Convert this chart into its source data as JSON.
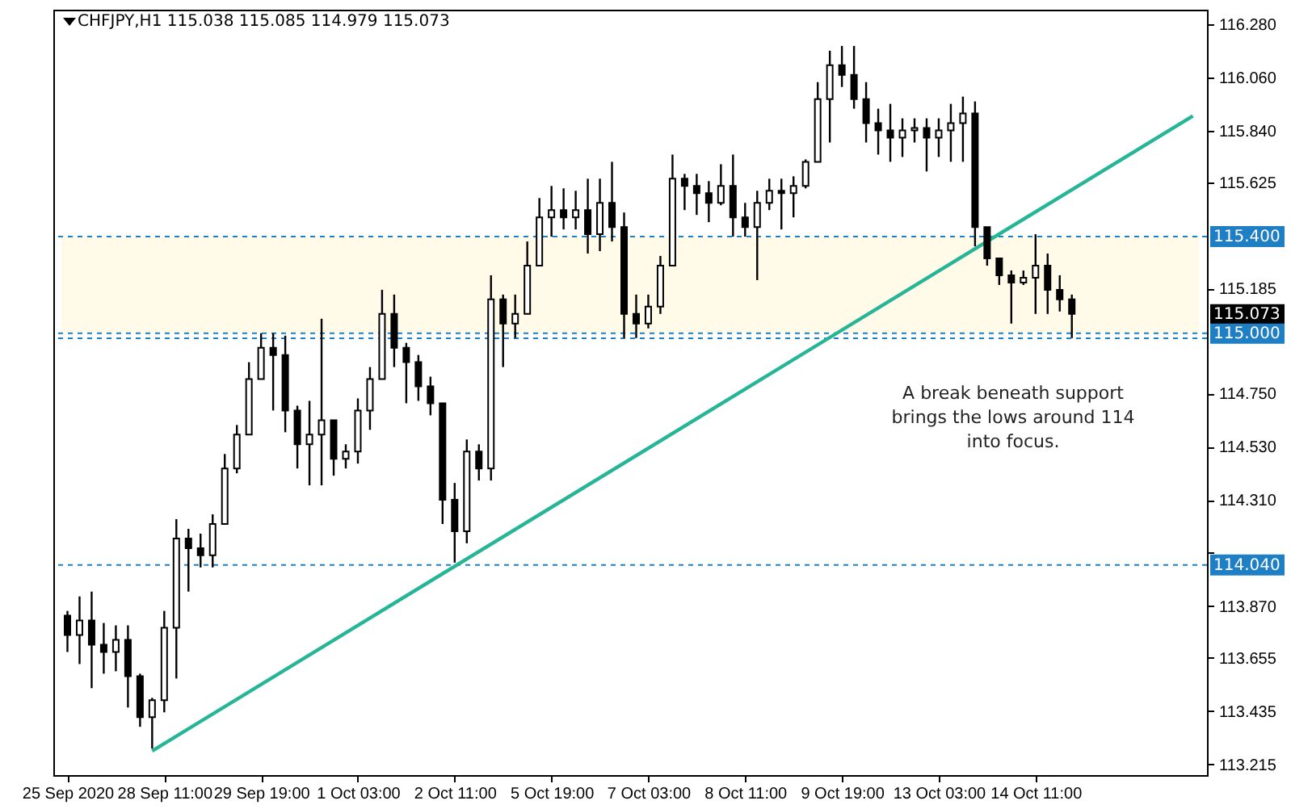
{
  "chart_data": {
    "type": "candlestick",
    "title": "CHFJPY,H1 115.038 115.085 114.979 115.073",
    "categories": [
      "25 Sep 2020",
      null,
      null,
      null,
      null,
      null,
      null,
      null,
      "28 Sep 11:00",
      null,
      null,
      null,
      null,
      null,
      null,
      null,
      "29 Sep 19:00",
      null,
      null,
      null,
      null,
      null,
      null,
      null,
      "1 Oct 03:00",
      null,
      null,
      null,
      null,
      null,
      null,
      null,
      "2 Oct 11:00",
      null,
      null,
      null,
      null,
      null,
      null,
      null,
      "5 Oct 19:00",
      null,
      null,
      null,
      null,
      null,
      null,
      null,
      "7 Oct 03:00",
      null,
      null,
      null,
      null,
      null,
      null,
      null,
      "8 Oct 11:00",
      null,
      null,
      null,
      null,
      null,
      null,
      null,
      "9 Oct 19:00",
      null,
      null,
      null,
      null,
      null,
      null,
      null,
      "13 Oct 03:00",
      null,
      null,
      null,
      null,
      null,
      null,
      null,
      "14 Oct 11:00",
      null,
      null,
      null,
      null,
      null,
      null,
      null,
      null,
      null,
      null,
      null,
      null,
      null
    ],
    "ohlc": [
      [
        113.83,
        113.85,
        113.68,
        113.75
      ],
      [
        113.75,
        113.91,
        113.63,
        113.81
      ],
      [
        113.81,
        113.93,
        113.53,
        113.71
      ],
      [
        113.71,
        113.8,
        113.59,
        113.68
      ],
      [
        113.68,
        113.79,
        113.6,
        113.73
      ],
      [
        113.73,
        113.79,
        113.45,
        113.58
      ],
      [
        113.58,
        113.59,
        113.37,
        113.41
      ],
      [
        113.41,
        113.49,
        113.28,
        113.48
      ],
      [
        113.48,
        113.85,
        113.43,
        113.78
      ],
      [
        113.78,
        114.23,
        113.57,
        114.15
      ],
      [
        114.15,
        114.19,
        113.93,
        114.11
      ],
      [
        114.11,
        114.17,
        114.03,
        114.08
      ],
      [
        114.08,
        114.25,
        114.03,
        114.21
      ],
      [
        114.21,
        114.5,
        114.21,
        114.44
      ],
      [
        114.44,
        114.62,
        114.42,
        114.58
      ],
      [
        114.58,
        114.88,
        114.58,
        114.81
      ],
      [
        114.81,
        115.0,
        114.81,
        114.94
      ],
      [
        114.94,
        115.0,
        114.68,
        114.91
      ],
      [
        114.91,
        114.99,
        114.59,
        114.68
      ],
      [
        114.68,
        114.7,
        114.44,
        114.54
      ],
      [
        114.54,
        114.72,
        114.37,
        114.58
      ],
      [
        114.58,
        115.06,
        114.37,
        114.64
      ],
      [
        114.64,
        114.64,
        114.41,
        114.48
      ],
      [
        114.48,
        114.54,
        114.44,
        114.51
      ],
      [
        114.51,
        114.73,
        114.46,
        114.68
      ],
      [
        114.68,
        114.86,
        114.6,
        114.81
      ],
      [
        114.81,
        115.18,
        114.81,
        115.08
      ],
      [
        115.08,
        115.16,
        114.86,
        114.94
      ],
      [
        114.94,
        114.96,
        114.71,
        114.88
      ],
      [
        114.88,
        114.91,
        114.72,
        114.78
      ],
      [
        114.78,
        114.82,
        114.66,
        114.71
      ],
      [
        114.71,
        114.71,
        114.21,
        114.31
      ],
      [
        114.31,
        114.38,
        114.05,
        114.18
      ],
      [
        114.18,
        114.56,
        114.13,
        114.51
      ],
      [
        114.51,
        114.54,
        114.39,
        114.44
      ],
      [
        114.44,
        115.24,
        114.39,
        115.14
      ],
      [
        115.14,
        115.16,
        114.86,
        115.04
      ],
      [
        115.04,
        115.16,
        114.98,
        115.08
      ],
      [
        115.08,
        115.38,
        115.08,
        115.28
      ],
      [
        115.28,
        115.56,
        115.28,
        115.48
      ],
      [
        115.48,
        115.61,
        115.4,
        115.51
      ],
      [
        115.51,
        115.6,
        115.43,
        115.48
      ],
      [
        115.48,
        115.59,
        115.43,
        115.51
      ],
      [
        115.51,
        115.64,
        115.33,
        115.41
      ],
      [
        115.41,
        115.64,
        115.34,
        115.54
      ],
      [
        115.54,
        115.71,
        115.38,
        115.44
      ],
      [
        115.44,
        115.5,
        114.98,
        115.08
      ],
      [
        115.08,
        115.16,
        114.98,
        115.04
      ],
      [
        115.04,
        115.16,
        115.02,
        115.11
      ],
      [
        115.11,
        115.32,
        115.08,
        115.28
      ],
      [
        115.28,
        115.74,
        115.28,
        115.64
      ],
      [
        115.64,
        115.66,
        115.51,
        115.61
      ],
      [
        115.61,
        115.66,
        115.49,
        115.58
      ],
      [
        115.58,
        115.63,
        115.46,
        115.54
      ],
      [
        115.54,
        115.7,
        115.53,
        115.61
      ],
      [
        115.61,
        115.74,
        115.4,
        115.48
      ],
      [
        115.48,
        115.54,
        115.4,
        115.44
      ],
      [
        115.44,
        115.59,
        115.22,
        115.54
      ],
      [
        115.54,
        115.64,
        115.51,
        115.59
      ],
      [
        115.59,
        115.64,
        115.43,
        115.58
      ],
      [
        115.58,
        115.65,
        115.48,
        115.61
      ],
      [
        115.61,
        115.72,
        115.6,
        115.71
      ],
      [
        115.71,
        116.04,
        115.71,
        115.97
      ],
      [
        115.97,
        116.17,
        115.79,
        116.11
      ],
      [
        116.11,
        116.19,
        116.02,
        116.07
      ],
      [
        116.07,
        116.19,
        115.93,
        115.97
      ],
      [
        115.97,
        116.04,
        115.79,
        115.87
      ],
      [
        115.87,
        115.93,
        115.74,
        115.84
      ],
      [
        115.84,
        115.95,
        115.71,
        115.81
      ],
      [
        115.81,
        115.89,
        115.73,
        115.84
      ],
      [
        115.84,
        115.89,
        115.79,
        115.85
      ],
      [
        115.85,
        115.89,
        115.67,
        115.81
      ],
      [
        115.81,
        115.89,
        115.73,
        115.84
      ],
      [
        115.84,
        115.95,
        115.71,
        115.87
      ],
      [
        115.87,
        115.98,
        115.71,
        115.91
      ],
      [
        115.91,
        115.96,
        115.36,
        115.44
      ],
      [
        115.44,
        115.44,
        115.28,
        115.31
      ],
      [
        115.31,
        115.31,
        115.2,
        115.24
      ],
      [
        115.24,
        115.26,
        115.04,
        115.21
      ],
      [
        115.21,
        115.26,
        115.2,
        115.23
      ],
      [
        115.23,
        115.41,
        115.08,
        115.28
      ],
      [
        115.28,
        115.33,
        115.08,
        115.18
      ],
      [
        115.18,
        115.24,
        115.09,
        115.14
      ],
      [
        115.14,
        115.16,
        114.98,
        115.08
      ],
      null,
      null,
      null,
      null,
      null,
      null,
      null,
      null,
      null,
      null
    ],
    "series": [
      {
        "type": "line",
        "color": "#26b596",
        "values": [
          null,
          null,
          null,
          null,
          null,
          null,
          null,
          113.27,
          null,
          null,
          null,
          null,
          null,
          null,
          null,
          null,
          null,
          null,
          null,
          null,
          null,
          null,
          null,
          null,
          null,
          null,
          null,
          null,
          null,
          null,
          null,
          null,
          null,
          null,
          null,
          null,
          null,
          null,
          null,
          null,
          null,
          null,
          null,
          null,
          null,
          null,
          null,
          null,
          null,
          null,
          null,
          null,
          null,
          null,
          null,
          null,
          null,
          null,
          null,
          null,
          null,
          null,
          null,
          null,
          null,
          null,
          null,
          null,
          null,
          null,
          null,
          null,
          null,
          null,
          null,
          null,
          null,
          null,
          null,
          null,
          null,
          null,
          null,
          null,
          null,
          null,
          null,
          null,
          null,
          null,
          null,
          null,
          null,
          115.9
        ]
      }
    ],
    "ylim": [
      113.17,
      116.34
    ],
    "yticks": [
      {
        "value": 113.215,
        "label": "113.215"
      },
      {
        "value": 113.435,
        "label": "113.435"
      },
      {
        "value": 113.655,
        "label": "113.655"
      },
      {
        "value": 113.87,
        "label": "113.870"
      },
      {
        "value": 114.09,
        "label": null
      },
      {
        "value": 114.31,
        "label": "114.310"
      },
      {
        "value": 114.53,
        "label": "114.530"
      },
      {
        "value": 114.75,
        "label": "114.750"
      },
      {
        "value": 115.185,
        "label": "115.185"
      },
      {
        "value": 115.625,
        "label": "115.625"
      },
      {
        "value": 115.84,
        "label": "115.840"
      },
      {
        "value": 116.06,
        "label": "116.060"
      },
      {
        "value": 116.28,
        "label": "116.280"
      }
    ],
    "ref_lines": [
      {
        "axis": "y",
        "value": 115.4,
        "label": "115.400",
        "color": "#1f7fc4",
        "line_style": "dashed"
      },
      {
        "axis": "y",
        "value": 114.979,
        "label": null,
        "color": "#1f7fc4",
        "line_style": "dashed"
      },
      {
        "axis": "y",
        "value": 115.0,
        "label": "115.000",
        "color": "#1f7fc4",
        "line_style": "dashed"
      },
      {
        "axis": "y",
        "value": 114.04,
        "label": "114.040",
        "color": "#1f7fc4",
        "line_style": "dashed"
      }
    ],
    "bands": [
      {
        "axis": "y",
        "from": 115.0,
        "to": 115.4,
        "color": "#fffbe8"
      }
    ],
    "annotations": [
      "115.073",
      "A break beneath support brings the lows around 114 into focus."
    ],
    "grid": false
  }
}
